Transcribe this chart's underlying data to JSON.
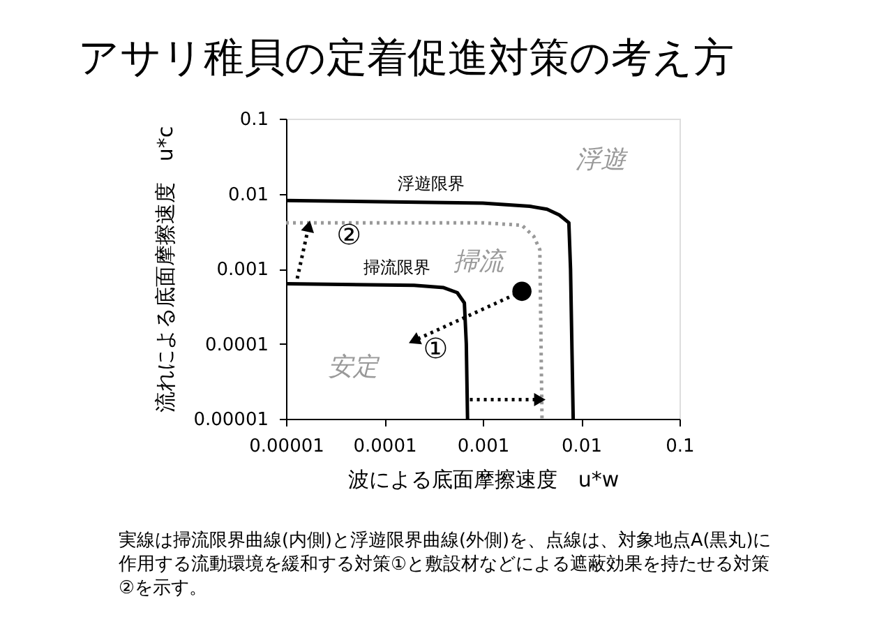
{
  "chart_data": {
    "type": "line",
    "title": "アサリ稚貝の定着促進対策の考え方",
    "xlabel": "波による底面摩擦速度　u*w",
    "ylabel": "流れによる底面摩擦速度　u*c",
    "log": "xy",
    "grid": false,
    "legend": false,
    "xlim": [
      1e-05,
      0.1
    ],
    "ylim": [
      1e-05,
      0.1
    ],
    "xticks": [
      {
        "value": 1e-05,
        "label": "0.00001"
      },
      {
        "value": 0.0001,
        "label": "0.0001"
      },
      {
        "value": 0.001,
        "label": "0.001"
      },
      {
        "value": 0.01,
        "label": "0.01"
      },
      {
        "value": 0.1,
        "label": "0.1"
      }
    ],
    "yticks": [
      {
        "value": 1e-05,
        "label": "0.00001"
      },
      {
        "value": 0.0001,
        "label": "0.0001"
      },
      {
        "value": 0.001,
        "label": "0.001"
      },
      {
        "value": 0.01,
        "label": "0.01"
      },
      {
        "value": 0.1,
        "label": "0.1"
      }
    ],
    "series": [
      {
        "name": "浮遊限界",
        "color": "#000000",
        "line_style": "solid",
        "x": [
          1e-05,
          0.001,
          0.003,
          0.0045,
          0.006,
          0.0075,
          0.0078,
          0.0083
        ],
        "values": [
          0.0081,
          0.0075,
          0.0068,
          0.0062,
          0.0052,
          0.0041,
          0.001,
          1e-05
        ]
      },
      {
        "name": "掃流限界",
        "color": "#000000",
        "line_style": "solid",
        "x": [
          1e-05,
          0.0002,
          0.0004,
          0.00055,
          0.00065,
          0.00068,
          0.0007
        ],
        "values": [
          0.00063,
          0.0006,
          0.00056,
          0.00048,
          0.00035,
          0.0001,
          1e-05
        ]
      },
      {
        "color": "#999999",
        "line_style": "dotted",
        "x": [
          1e-05,
          0.001,
          0.0025,
          0.0033,
          0.0038,
          0.004
        ],
        "values": [
          0.0041,
          0.0041,
          0.0038,
          0.0027,
          0.0018,
          1e-05
        ]
      },
      {
        "type": "scatter",
        "color": "#000000",
        "marker": "circle",
        "x": [
          0.0025
        ],
        "values": [
          0.0005
        ]
      },
      {
        "type": "line",
        "color": "#000000",
        "line_style": "dotted",
        "marker": "triangle",
        "x": [
          0.0025,
          0.0002
        ],
        "values": [
          0.0005,
          0.00011
        ]
      },
      {
        "type": "line",
        "color": "#000000",
        "line_style": "dotted",
        "marker": "triangle",
        "x": [
          1.3e-05,
          1.7e-05
        ],
        "values": [
          0.00074,
          0.0037
        ]
      },
      {
        "type": "line",
        "color": "#000000",
        "line_style": "dotted",
        "marker": "triangle",
        "x": [
          0.00074,
          0.0038
        ],
        "values": [
          1.8e-05,
          1.8e-05
        ]
      }
    ],
    "annotations": [
      "浮遊",
      "掃流",
      "安定",
      "①",
      "②",
      "実線は掃流限界曲線(内側)と浮遊限界曲線(外側)を、点線は、対象地点A(黒丸)に作用する流動環境を緩和する対策①と敷設材などによる遮蔽効果を持たせる対策②を示す。"
    ]
  }
}
